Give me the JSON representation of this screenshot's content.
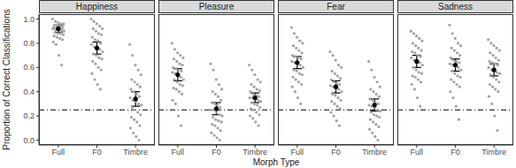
{
  "chart_data": {
    "type": "scatter",
    "x_label": "Morph Type",
    "y_label": "Proportion of Correct Classifications",
    "ylim": [
      -0.04,
      1.04
    ],
    "yticks": [
      {
        "value": 0,
        "label": "0.0"
      },
      {
        "value": 0.2,
        "label": "0.2"
      },
      {
        "value": 0.4,
        "label": "0.4"
      },
      {
        "value": 0.6,
        "label": "0.6"
      },
      {
        "value": 0.8,
        "label": "0.8"
      },
      {
        "value": 1,
        "label": "1.0"
      }
    ],
    "grid": false,
    "color": "#a3a3a3",
    "reference_line": {
      "value": 0.25,
      "line_style": "dashdot"
    },
    "panels": [
      {
        "title": "Happiness",
        "categories": [
          "Full",
          "F0",
          "Timbre"
        ],
        "means": [
          0.92,
          0.76,
          0.34
        ],
        "errors": [
          0.03,
          0.05,
          0.06
        ],
        "points": [
          [
            1.0,
            0.98,
            0.97,
            0.96,
            0.96,
            0.95,
            0.95,
            0.94,
            0.94,
            0.93,
            0.93,
            0.92,
            0.92,
            0.92,
            0.91,
            0.91,
            0.9,
            0.9,
            0.89,
            0.88,
            0.88,
            0.87,
            0.86,
            0.85,
            0.84,
            0.83,
            0.81,
            0.79,
            0.7,
            0.62
          ],
          [
            1.0,
            0.98,
            0.96,
            0.94,
            0.92,
            0.92,
            0.9,
            0.88,
            0.87,
            0.85,
            0.83,
            0.82,
            0.8,
            0.79,
            0.77,
            0.75,
            0.75,
            0.73,
            0.71,
            0.7,
            0.68,
            0.67,
            0.65,
            0.63,
            0.6,
            0.58,
            0.55,
            0.5,
            0.46,
            0.42
          ],
          [
            0.79,
            0.7,
            0.62,
            0.58,
            0.54,
            0.5,
            0.48,
            0.46,
            0.44,
            0.42,
            0.4,
            0.38,
            0.36,
            0.35,
            0.33,
            0.32,
            0.3,
            0.29,
            0.27,
            0.25,
            0.23,
            0.21,
            0.19,
            0.17,
            0.15,
            0.12,
            0.1,
            0.06,
            0.03,
            0.0
          ]
        ]
      },
      {
        "title": "Pleasure",
        "categories": [
          "Full",
          "F0",
          "Timbre"
        ],
        "means": [
          0.54,
          0.26,
          0.35
        ],
        "errors": [
          0.05,
          0.05,
          0.04
        ],
        "points": [
          [
            0.8,
            0.75,
            0.72,
            0.7,
            0.68,
            0.67,
            0.65,
            0.63,
            0.62,
            0.6,
            0.59,
            0.58,
            0.57,
            0.56,
            0.55,
            0.54,
            0.52,
            0.5,
            0.5,
            0.48,
            0.46,
            0.45,
            0.43,
            0.42,
            0.4,
            0.38,
            0.33,
            0.3,
            0.2,
            0.12
          ],
          [
            0.63,
            0.58,
            0.5,
            0.46,
            0.42,
            0.4,
            0.38,
            0.36,
            0.33,
            0.31,
            0.3,
            0.29,
            0.27,
            0.25,
            0.25,
            0.23,
            0.21,
            0.2,
            0.19,
            0.17,
            0.16,
            0.15,
            0.13,
            0.12,
            0.1,
            0.08,
            0.06,
            0.04,
            0.02,
            0.0
          ],
          [
            0.62,
            0.58,
            0.54,
            0.5,
            0.48,
            0.46,
            0.44,
            0.42,
            0.41,
            0.4,
            0.38,
            0.37,
            0.36,
            0.35,
            0.35,
            0.34,
            0.33,
            0.32,
            0.31,
            0.3,
            0.29,
            0.27,
            0.26,
            0.25,
            0.23,
            0.21,
            0.2,
            0.18,
            0.15,
            0.12
          ]
        ]
      },
      {
        "title": "Fear",
        "categories": [
          "Full",
          "F0",
          "Timbre"
        ],
        "means": [
          0.64,
          0.44,
          0.29
        ],
        "errors": [
          0.05,
          0.05,
          0.05
        ],
        "points": [
          [
            0.93,
            0.88,
            0.85,
            0.82,
            0.8,
            0.78,
            0.76,
            0.74,
            0.72,
            0.7,
            0.69,
            0.68,
            0.67,
            0.65,
            0.64,
            0.63,
            0.62,
            0.6,
            0.58,
            0.57,
            0.55,
            0.54,
            0.52,
            0.5,
            0.48,
            0.46,
            0.44,
            0.4,
            0.35,
            0.3
          ],
          [
            0.73,
            0.7,
            0.66,
            0.62,
            0.6,
            0.57,
            0.55,
            0.53,
            0.51,
            0.5,
            0.48,
            0.47,
            0.46,
            0.45,
            0.44,
            0.43,
            0.42,
            0.4,
            0.38,
            0.37,
            0.35,
            0.33,
            0.32,
            0.3,
            0.28,
            0.26,
            0.23,
            0.2,
            0.16,
            0.12
          ],
          [
            0.65,
            0.58,
            0.52,
            0.48,
            0.44,
            0.42,
            0.4,
            0.38,
            0.36,
            0.34,
            0.33,
            0.31,
            0.3,
            0.29,
            0.28,
            0.27,
            0.25,
            0.24,
            0.23,
            0.21,
            0.2,
            0.19,
            0.17,
            0.15,
            0.13,
            0.11,
            0.09,
            0.06,
            0.03,
            0.0
          ]
        ]
      },
      {
        "title": "Sadness",
        "categories": [
          "Full",
          "F0",
          "Timbre"
        ],
        "means": [
          0.65,
          0.62,
          0.58
        ],
        "errors": [
          0.05,
          0.05,
          0.05
        ],
        "points": [
          [
            0.9,
            0.88,
            0.86,
            0.84,
            0.82,
            0.8,
            0.78,
            0.76,
            0.74,
            0.73,
            0.72,
            0.7,
            0.69,
            0.68,
            0.66,
            0.65,
            0.64,
            0.62,
            0.6,
            0.58,
            0.56,
            0.55,
            0.53,
            0.52,
            0.5,
            0.48,
            0.46,
            0.42,
            0.35,
            0.28
          ],
          [
            0.95,
            0.88,
            0.84,
            0.8,
            0.78,
            0.76,
            0.74,
            0.72,
            0.7,
            0.68,
            0.66,
            0.65,
            0.64,
            0.63,
            0.62,
            0.61,
            0.6,
            0.58,
            0.57,
            0.55,
            0.53,
            0.52,
            0.5,
            0.48,
            0.46,
            0.44,
            0.4,
            0.35,
            0.28,
            0.17
          ],
          [
            0.83,
            0.8,
            0.78,
            0.76,
            0.74,
            0.72,
            0.7,
            0.68,
            0.66,
            0.65,
            0.64,
            0.63,
            0.62,
            0.6,
            0.58,
            0.57,
            0.56,
            0.55,
            0.54,
            0.52,
            0.5,
            0.48,
            0.46,
            0.44,
            0.42,
            0.4,
            0.36,
            0.3,
            0.2,
            0.08
          ]
        ]
      }
    ]
  }
}
